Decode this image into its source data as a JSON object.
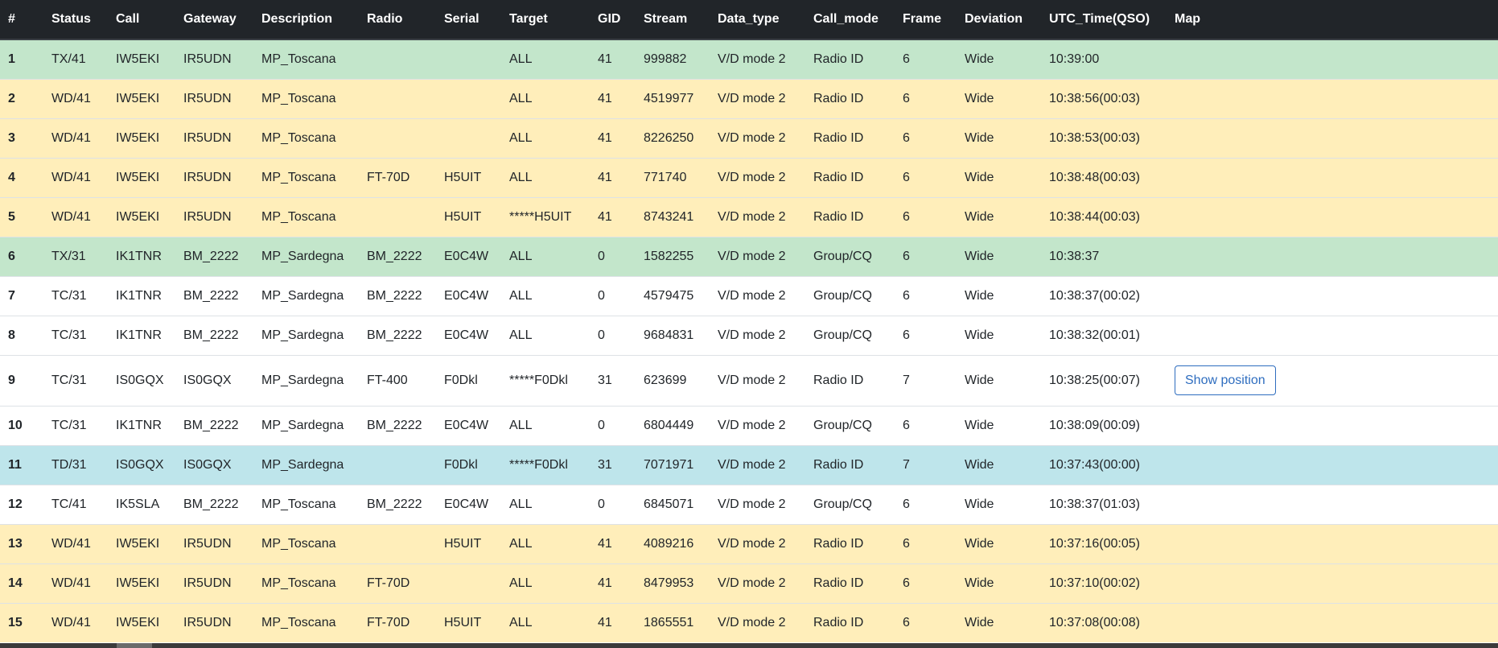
{
  "columns": [
    "#",
    "Status",
    "Call",
    "Gateway",
    "Description",
    "Radio",
    "Serial",
    "Target",
    "GID",
    "Stream",
    "Data_type",
    "Call_mode",
    "Frame",
    "Deviation",
    "UTC_Time(QSO)",
    "Map"
  ],
  "colors": {
    "header_bg": "#212529",
    "row_success": "#c3e6cb",
    "row_warning": "#ffeeba",
    "row_info": "#bee5eb",
    "row_plain": "#ffffff",
    "button_blue": "#2e6dbf"
  },
  "rows": [
    {
      "num": "1",
      "status": "TX/41",
      "call": "IW5EKI",
      "gateway": "IR5UDN",
      "description": "MP_Toscana",
      "radio": "",
      "serial": "",
      "target": "ALL",
      "gid": "41",
      "stream": "999882",
      "data_type": "V/D mode 2",
      "call_mode": "Radio ID",
      "frame": "6",
      "deviation": "Wide",
      "utc": "10:39:00",
      "map": "",
      "row_style": "success"
    },
    {
      "num": "2",
      "status": "WD/41",
      "call": "IW5EKI",
      "gateway": "IR5UDN",
      "description": "MP_Toscana",
      "radio": "",
      "serial": "",
      "target": "ALL",
      "gid": "41",
      "stream": "4519977",
      "data_type": "V/D mode 2",
      "call_mode": "Radio ID",
      "frame": "6",
      "deviation": "Wide",
      "utc": "10:38:56(00:03)",
      "map": "",
      "row_style": "warning"
    },
    {
      "num": "3",
      "status": "WD/41",
      "call": "IW5EKI",
      "gateway": "IR5UDN",
      "description": "MP_Toscana",
      "radio": "",
      "serial": "",
      "target": "ALL",
      "gid": "41",
      "stream": "8226250",
      "data_type": "V/D mode 2",
      "call_mode": "Radio ID",
      "frame": "6",
      "deviation": "Wide",
      "utc": "10:38:53(00:03)",
      "map": "",
      "row_style": "warning"
    },
    {
      "num": "4",
      "status": "WD/41",
      "call": "IW5EKI",
      "gateway": "IR5UDN",
      "description": "MP_Toscana",
      "radio": "FT-70D",
      "serial": "H5UIT",
      "target": "ALL",
      "gid": "41",
      "stream": "771740",
      "data_type": "V/D mode 2",
      "call_mode": "Radio ID",
      "frame": "6",
      "deviation": "Wide",
      "utc": "10:38:48(00:03)",
      "map": "",
      "row_style": "warning"
    },
    {
      "num": "5",
      "status": "WD/41",
      "call": "IW5EKI",
      "gateway": "IR5UDN",
      "description": "MP_Toscana",
      "radio": "",
      "serial": "H5UIT",
      "target": "*****H5UIT",
      "gid": "41",
      "stream": "8743241",
      "data_type": "V/D mode 2",
      "call_mode": "Radio ID",
      "frame": "6",
      "deviation": "Wide",
      "utc": "10:38:44(00:03)",
      "map": "",
      "row_style": "warning"
    },
    {
      "num": "6",
      "status": "TX/31",
      "call": "IK1TNR",
      "gateway": "BM_2222",
      "description": "MP_Sardegna",
      "radio": "BM_2222",
      "serial": "E0C4W",
      "target": "ALL",
      "gid": "0",
      "stream": "1582255",
      "data_type": "V/D mode 2",
      "call_mode": "Group/CQ",
      "frame": "6",
      "deviation": "Wide",
      "utc": "10:38:37",
      "map": "",
      "row_style": "success"
    },
    {
      "num": "7",
      "status": "TC/31",
      "call": "IK1TNR",
      "gateway": "BM_2222",
      "description": "MP_Sardegna",
      "radio": "BM_2222",
      "serial": "E0C4W",
      "target": "ALL",
      "gid": "0",
      "stream": "4579475",
      "data_type": "V/D mode 2",
      "call_mode": "Group/CQ",
      "frame": "6",
      "deviation": "Wide",
      "utc": "10:38:37(00:02)",
      "map": "",
      "row_style": "plain"
    },
    {
      "num": "8",
      "status": "TC/31",
      "call": "IK1TNR",
      "gateway": "BM_2222",
      "description": "MP_Sardegna",
      "radio": "BM_2222",
      "serial": "E0C4W",
      "target": "ALL",
      "gid": "0",
      "stream": "9684831",
      "data_type": "V/D mode 2",
      "call_mode": "Group/CQ",
      "frame": "6",
      "deviation": "Wide",
      "utc": "10:38:32(00:01)",
      "map": "",
      "row_style": "plain"
    },
    {
      "num": "9",
      "status": "TC/31",
      "call": "IS0GQX",
      "gateway": "IS0GQX",
      "description": "MP_Sardegna",
      "radio": "FT-400",
      "serial": "F0Dkl",
      "target": "*****F0Dkl",
      "gid": "31",
      "stream": "623699",
      "data_type": "V/D mode 2",
      "call_mode": "Radio ID",
      "frame": "7",
      "deviation": "Wide",
      "utc": "10:38:25(00:07)",
      "map": "Show position",
      "row_style": "plain"
    },
    {
      "num": "10",
      "status": "TC/31",
      "call": "IK1TNR",
      "gateway": "BM_2222",
      "description": "MP_Sardegna",
      "radio": "BM_2222",
      "serial": "E0C4W",
      "target": "ALL",
      "gid": "0",
      "stream": "6804449",
      "data_type": "V/D mode 2",
      "call_mode": "Group/CQ",
      "frame": "6",
      "deviation": "Wide",
      "utc": "10:38:09(00:09)",
      "map": "",
      "row_style": "plain"
    },
    {
      "num": "11",
      "status": "TD/31",
      "call": "IS0GQX",
      "gateway": "IS0GQX",
      "description": "MP_Sardegna",
      "radio": "",
      "serial": "F0Dkl",
      "target": "*****F0Dkl",
      "gid": "31",
      "stream": "7071971",
      "data_type": "V/D mode 2",
      "call_mode": "Radio ID",
      "frame": "7",
      "deviation": "Wide",
      "utc": "10:37:43(00:00)",
      "map": "",
      "row_style": "info"
    },
    {
      "num": "12",
      "status": "TC/41",
      "call": "IK5SLA",
      "gateway": "BM_2222",
      "description": "MP_Toscana",
      "radio": "BM_2222",
      "serial": "E0C4W",
      "target": "ALL",
      "gid": "0",
      "stream": "6845071",
      "data_type": "V/D mode 2",
      "call_mode": "Group/CQ",
      "frame": "6",
      "deviation": "Wide",
      "utc": "10:38:37(01:03)",
      "map": "",
      "row_style": "plain"
    },
    {
      "num": "13",
      "status": "WD/41",
      "call": "IW5EKI",
      "gateway": "IR5UDN",
      "description": "MP_Toscana",
      "radio": "",
      "serial": "H5UIT",
      "target": "ALL",
      "gid": "41",
      "stream": "4089216",
      "data_type": "V/D mode 2",
      "call_mode": "Radio ID",
      "frame": "6",
      "deviation": "Wide",
      "utc": "10:37:16(00:05)",
      "map": "",
      "row_style": "warning"
    },
    {
      "num": "14",
      "status": "WD/41",
      "call": "IW5EKI",
      "gateway": "IR5UDN",
      "description": "MP_Toscana",
      "radio": "FT-70D",
      "serial": "",
      "target": "ALL",
      "gid": "41",
      "stream": "8479953",
      "data_type": "V/D mode 2",
      "call_mode": "Radio ID",
      "frame": "6",
      "deviation": "Wide",
      "utc": "10:37:10(00:02)",
      "map": "",
      "row_style": "warning"
    },
    {
      "num": "15",
      "status": "WD/41",
      "call": "IW5EKI",
      "gateway": "IR5UDN",
      "description": "MP_Toscana",
      "radio": "FT-70D",
      "serial": "H5UIT",
      "target": "ALL",
      "gid": "41",
      "stream": "1865551",
      "data_type": "V/D mode 2",
      "call_mode": "Radio ID",
      "frame": "6",
      "deviation": "Wide",
      "utc": "10:37:08(00:08)",
      "map": "",
      "row_style": "warning"
    }
  ]
}
